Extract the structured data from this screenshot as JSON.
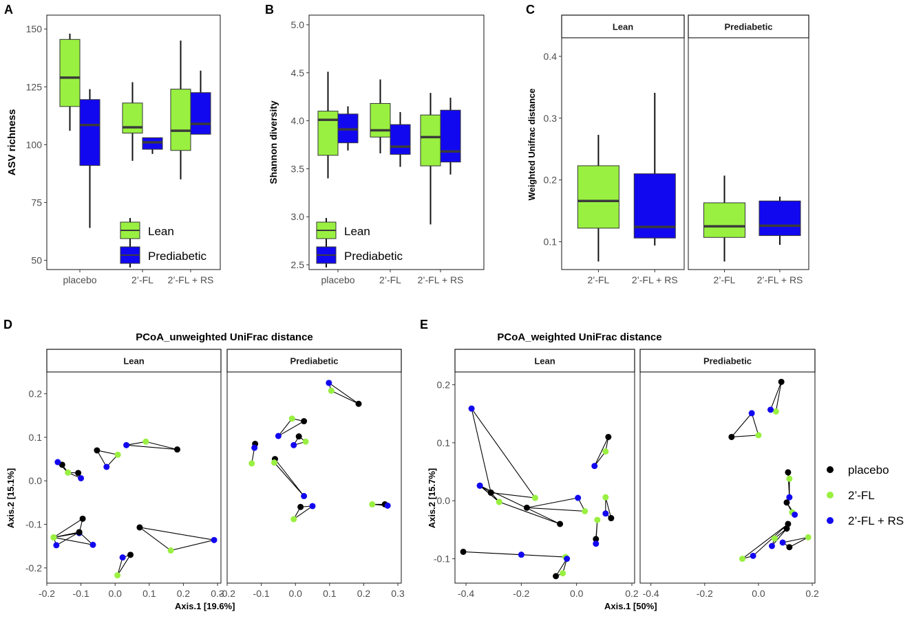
{
  "colors": {
    "lean": "#99f041",
    "prediabetic": "#1208f0",
    "placebo": "#000000",
    "fl": "#99f041",
    "flrs": "#1208f0",
    "median": "#3b3b3b"
  },
  "panel_letters": [
    "A",
    "B",
    "C",
    "D",
    "E"
  ],
  "legend_boxes": {
    "lean": "Lean",
    "prediabetic": "Prediabetic"
  },
  "legend_points": [
    "placebo",
    "2’-FL",
    "2’-FL + RS"
  ],
  "chart_data": [
    {
      "id": "A",
      "type": "box",
      "ylabel": "ASV richness",
      "ylim": [
        46,
        156
      ],
      "yticks": [
        50,
        75,
        100,
        125,
        150
      ],
      "categories": [
        "placebo",
        "2’-FL",
        "2’-FL + RS"
      ],
      "series": [
        {
          "name": "Lean",
          "boxes": [
            {
              "min": 106,
              "q1": 116.5,
              "median": 129,
              "q3": 145.5,
              "max": 148
            },
            {
              "min": 93,
              "q1": 105,
              "median": 107.5,
              "q3": 118,
              "max": 127
            },
            {
              "min": 85,
              "q1": 97.5,
              "median": 106,
              "q3": 124,
              "max": 145
            }
          ]
        },
        {
          "name": "Prediabetic",
          "boxes": [
            {
              "min": 64,
              "q1": 91,
              "median": 108.5,
              "q3": 119.5,
              "max": 124
            },
            {
              "min": 96,
              "q1": 98,
              "median": 101,
              "q3": 103,
              "max": 103
            },
            {
              "min": 104.5,
              "q1": 104.5,
              "median": 109,
              "q3": 122.5,
              "max": 132
            }
          ]
        }
      ]
    },
    {
      "id": "B",
      "type": "box",
      "ylabel": "Shannon diversity",
      "ylim": [
        2.45,
        5.1
      ],
      "yticks": [
        2.5,
        3.0,
        3.5,
        4.0,
        4.5,
        5.0
      ],
      "categories": [
        "placebo",
        "2’-FL",
        "2’-FL + RS"
      ],
      "series": [
        {
          "name": "Lean",
          "boxes": [
            {
              "min": 3.4,
              "q1": 3.64,
              "median": 4.01,
              "q3": 4.1,
              "max": 4.51
            },
            {
              "min": 3.66,
              "q1": 3.83,
              "median": 3.9,
              "q3": 4.18,
              "max": 4.43
            },
            {
              "min": 2.92,
              "q1": 3.53,
              "median": 3.83,
              "q3": 4.06,
              "max": 4.29
            }
          ]
        },
        {
          "name": "Prediabetic",
          "boxes": [
            {
              "min": 3.69,
              "q1": 3.77,
              "median": 3.91,
              "q3": 4.07,
              "max": 4.15
            },
            {
              "min": 3.52,
              "q1": 3.65,
              "median": 3.73,
              "q3": 3.96,
              "max": 4.09
            },
            {
              "min": 3.44,
              "q1": 3.57,
              "median": 3.68,
              "q3": 4.11,
              "max": 4.24
            }
          ]
        }
      ]
    },
    {
      "id": "C",
      "type": "box",
      "ylabel": "Weighted Unifrac distance",
      "ylim": [
        0.055,
        0.43
      ],
      "yticks": [
        0.1,
        0.2,
        0.3,
        0.4
      ],
      "facets": [
        {
          "name": "Lean",
          "categories": [
            "2’-FL",
            "2’-FL + RS"
          ],
          "boxes": [
            {
              "color": "lean",
              "min": 0.068,
              "q1": 0.122,
              "median": 0.166,
              "q3": 0.223,
              "max": 0.273
            },
            {
              "color": "prediabetic",
              "min": 0.094,
              "q1": 0.106,
              "median": 0.124,
              "q3": 0.21,
              "max": 0.341
            }
          ]
        },
        {
          "name": "Prediabetic",
          "categories": [
            "2’-FL",
            "2’-FL + RS"
          ],
          "boxes": [
            {
              "color": "lean",
              "min": 0.068,
              "q1": 0.107,
              "median": 0.125,
              "q3": 0.163,
              "max": 0.207
            },
            {
              "color": "prediabetic",
              "min": 0.095,
              "q1": 0.11,
              "median": 0.126,
              "q3": 0.166,
              "max": 0.173
            }
          ]
        }
      ]
    },
    {
      "id": "D",
      "type": "scatter",
      "title": "PCoA_unweighted UniFrac distance",
      "xlabel": "Axis.1   [19.6%]",
      "ylabel": "Axis.2   [15.1%]",
      "xlim": [
        -0.2,
        0.31
      ],
      "ylim": [
        -0.235,
        0.25
      ],
      "xticks": [
        -0.2,
        -0.1,
        0.0,
        0.1,
        0.2,
        0.3
      ],
      "yticks": [
        -0.2,
        -0.1,
        0.0,
        0.1,
        0.2
      ],
      "facets": [
        {
          "name": "Lean",
          "groups": [
            [
              [
                "p",
                -0.155,
                0.037
              ],
              [
                "f",
                -0.138,
                0.019
              ],
              [
                "b",
                -0.168,
                0.043
              ]
            ],
            [
              [
                "p",
                -0.108,
                0.018
              ],
              [
                "f",
                -0.138,
                0.019
              ],
              [
                "b",
                -0.1,
                0.006
              ]
            ],
            [
              [
                "p",
                -0.053,
                0.07
              ],
              [
                "f",
                0.008,
                0.06
              ],
              [
                "b",
                -0.025,
                0.032
              ]
            ],
            [
              [
                "p",
                0.182,
                0.072
              ],
              [
                "f",
                0.09,
                0.09
              ],
              [
                "b",
                0.033,
                0.082
              ]
            ],
            [
              [
                "p",
                -0.095,
                -0.087
              ],
              [
                "f",
                -0.18,
                -0.13
              ],
              [
                "b",
                -0.105,
                -0.12
              ]
            ],
            [
              [
                "p",
                -0.105,
                -0.118
              ],
              [
                "f",
                -0.18,
                -0.13
              ],
              [
                "b",
                -0.172,
                -0.148
              ]
            ],
            [
              [
                "p",
                -0.105,
                -0.118
              ],
              [
                "f",
                -0.18,
                -0.13
              ],
              [
                "b",
                -0.065,
                -0.147
              ]
            ],
            [
              [
                "p",
                0.072,
                -0.107
              ],
              [
                "f",
                0.163,
                -0.16
              ],
              [
                "b",
                0.29,
                -0.136
              ]
            ],
            [
              [
                "p",
                0.045,
                -0.17
              ],
              [
                "f",
                0.007,
                -0.217
              ],
              [
                "b",
                0.022,
                -0.176
              ]
            ]
          ]
        },
        {
          "name": "Prediabetic",
          "groups": [
            [
              [
                "p",
                0.185,
                0.177
              ],
              [
                "f",
                0.105,
                0.207
              ],
              [
                "b",
                0.098,
                0.225
              ]
            ],
            [
              [
                "p",
                0.025,
                0.137
              ],
              [
                "f",
                -0.01,
                0.143
              ],
              [
                "b",
                -0.05,
                0.103
              ]
            ],
            [
              [
                "p",
                0.01,
                0.102
              ],
              [
                "f",
                0.03,
                0.09
              ],
              [
                "b",
                -0.005,
                0.082
              ]
            ],
            [
              [
                "p",
                -0.118,
                0.085
              ],
              [
                "f",
                -0.128,
                0.04
              ],
              [
                "b",
                -0.12,
                0.076
              ]
            ],
            [
              [
                "p",
                -0.06,
                0.05
              ],
              [
                "f",
                -0.062,
                0.042
              ],
              [
                "b",
                0.025,
                -0.035
              ]
            ],
            [
              [
                "p",
                0.015,
                -0.06
              ],
              [
                "f",
                -0.005,
                -0.088
              ],
              [
                "b",
                0.05,
                -0.058
              ]
            ],
            [
              [
                "p",
                0.262,
                -0.054
              ],
              [
                "f",
                0.225,
                -0.054
              ],
              [
                "b",
                0.27,
                -0.057
              ]
            ]
          ]
        }
      ]
    },
    {
      "id": "E",
      "type": "scatter",
      "title": "PCoA_weighted UniFrac distance",
      "xlabel": "Axis.1   [50%]",
      "ylabel": "Axis.2   [15.7%]",
      "xlim": [
        -0.44,
        0.21
      ],
      "ylim": [
        -0.142,
        0.222
      ],
      "xticks": [
        -0.4,
        -0.2,
        0.0,
        0.2
      ],
      "yticks": [
        -0.1,
        0.0,
        0.1,
        0.2
      ],
      "facets": [
        {
          "name": "Lean",
          "groups": [
            [
              [
                "p",
                -0.31,
                0.014
              ],
              [
                "f",
                -0.15,
                0.005
              ],
              [
                "b",
                -0.38,
                0.159
              ]
            ],
            [
              [
                "p",
                -0.31,
                0.014
              ],
              [
                "f",
                -0.28,
                -0.002
              ],
              [
                "b",
                -0.35,
                0.026
              ]
            ],
            [
              [
                "p",
                -0.06,
                -0.04
              ],
              [
                "f",
                -0.28,
                -0.002
              ],
              [
                "b",
                -0.35,
                0.026
              ]
            ],
            [
              [
                "p",
                -0.18,
                -0.012
              ],
              [
                "f",
                0.03,
                -0.018
              ],
              [
                "b",
                0.005,
                0.005
              ]
            ],
            [
              [
                "p",
                0.115,
                0.11
              ],
              [
                "f",
                0.105,
                0.085
              ],
              [
                "b",
                0.065,
                0.06
              ]
            ],
            [
              [
                "p",
                0.125,
                -0.03
              ],
              [
                "f",
                0.105,
                0.006
              ],
              [
                "b",
                0.105,
                -0.022
              ]
            ],
            [
              [
                "p",
                0.07,
                -0.066
              ],
              [
                "f",
                0.075,
                -0.033
              ],
              [
                "b",
                0.07,
                -0.074
              ]
            ],
            [
              [
                "p",
                -0.41,
                -0.088
              ],
              [
                "f",
                -0.04,
                -0.097
              ],
              [
                "b",
                -0.2,
                -0.093
              ]
            ],
            [
              [
                "p",
                -0.075,
                -0.13
              ],
              [
                "f",
                -0.05,
                -0.125
              ],
              [
                "b",
                -0.035,
                -0.1
              ]
            ]
          ]
        },
        {
          "name": "Prediabetic",
          "groups": [
            [
              [
                "p",
                0.085,
                0.205
              ],
              [
                "f",
                0.065,
                0.154
              ],
              [
                "b",
                0.045,
                0.157
              ]
            ],
            [
              [
                "p",
                -0.1,
                0.11
              ],
              [
                "f",
                0.0,
                0.113
              ],
              [
                "b",
                -0.025,
                0.151
              ]
            ],
            [
              [
                "p",
                0.11,
                0.049
              ],
              [
                "f",
                0.115,
                0.038
              ],
              [
                "b",
                0.115,
                0.006
              ]
            ],
            [
              [
                "p",
                0.105,
                -0.003
              ],
              [
                "f",
                0.125,
                -0.02
              ],
              [
                "b",
                0.135,
                -0.024
              ]
            ],
            [
              [
                "p",
                0.105,
                -0.048
              ],
              [
                "f",
                0.06,
                -0.065
              ],
              [
                "b",
                0.05,
                -0.078
              ]
            ],
            [
              [
                "p",
                0.115,
                -0.08
              ],
              [
                "f",
                0.185,
                -0.063
              ],
              [
                "b",
                0.09,
                -0.072
              ]
            ],
            [
              [
                "p",
                0.11,
                -0.04
              ],
              [
                "f",
                -0.06,
                -0.1
              ],
              [
                "b",
                -0.02,
                -0.095
              ]
            ]
          ]
        }
      ]
    }
  ]
}
